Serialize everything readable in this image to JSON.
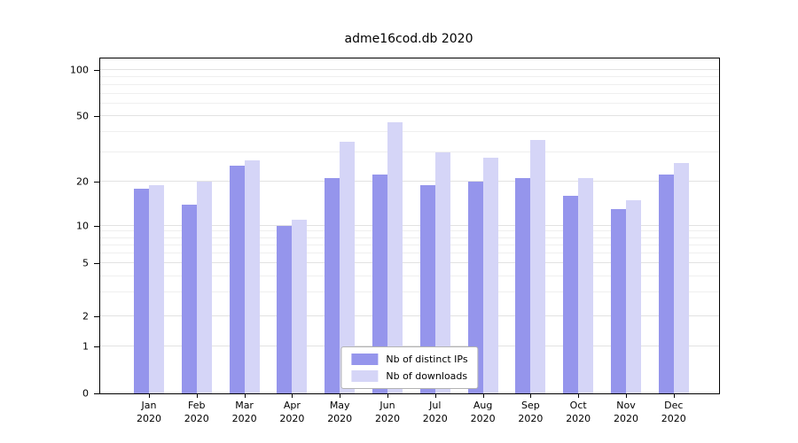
{
  "chart_data": {
    "type": "bar",
    "title": "adme16cod.db 2020",
    "categories": [
      "Jan",
      "Feb",
      "Mar",
      "Apr",
      "May",
      "Jun",
      "Jul",
      "Aug",
      "Sep",
      "Oct",
      "Nov",
      "Dec"
    ],
    "x_tick_sub_label": "2020",
    "series": [
      {
        "name": "Nb of distinct IPs",
        "color": "#9595ec",
        "values": [
          18,
          14,
          25,
          10,
          21,
          22,
          19,
          20,
          21,
          16,
          13,
          22
        ]
      },
      {
        "name": "Nb of downloads",
        "color": "#d5d5f7",
        "values": [
          19,
          20,
          27,
          11,
          35,
          46,
          30,
          28,
          36,
          21,
          15,
          26
        ]
      }
    ],
    "yscale": "symlog",
    "y_ticks": [
      0,
      1,
      2,
      5,
      10,
      20,
      50,
      100
    ],
    "y_minor_gridlines": [
      3,
      4,
      6,
      7,
      8,
      9,
      30,
      40,
      60,
      70,
      80,
      90
    ],
    "ylim": [
      0,
      100
    ],
    "grid": true,
    "legend_position": "lower center"
  }
}
